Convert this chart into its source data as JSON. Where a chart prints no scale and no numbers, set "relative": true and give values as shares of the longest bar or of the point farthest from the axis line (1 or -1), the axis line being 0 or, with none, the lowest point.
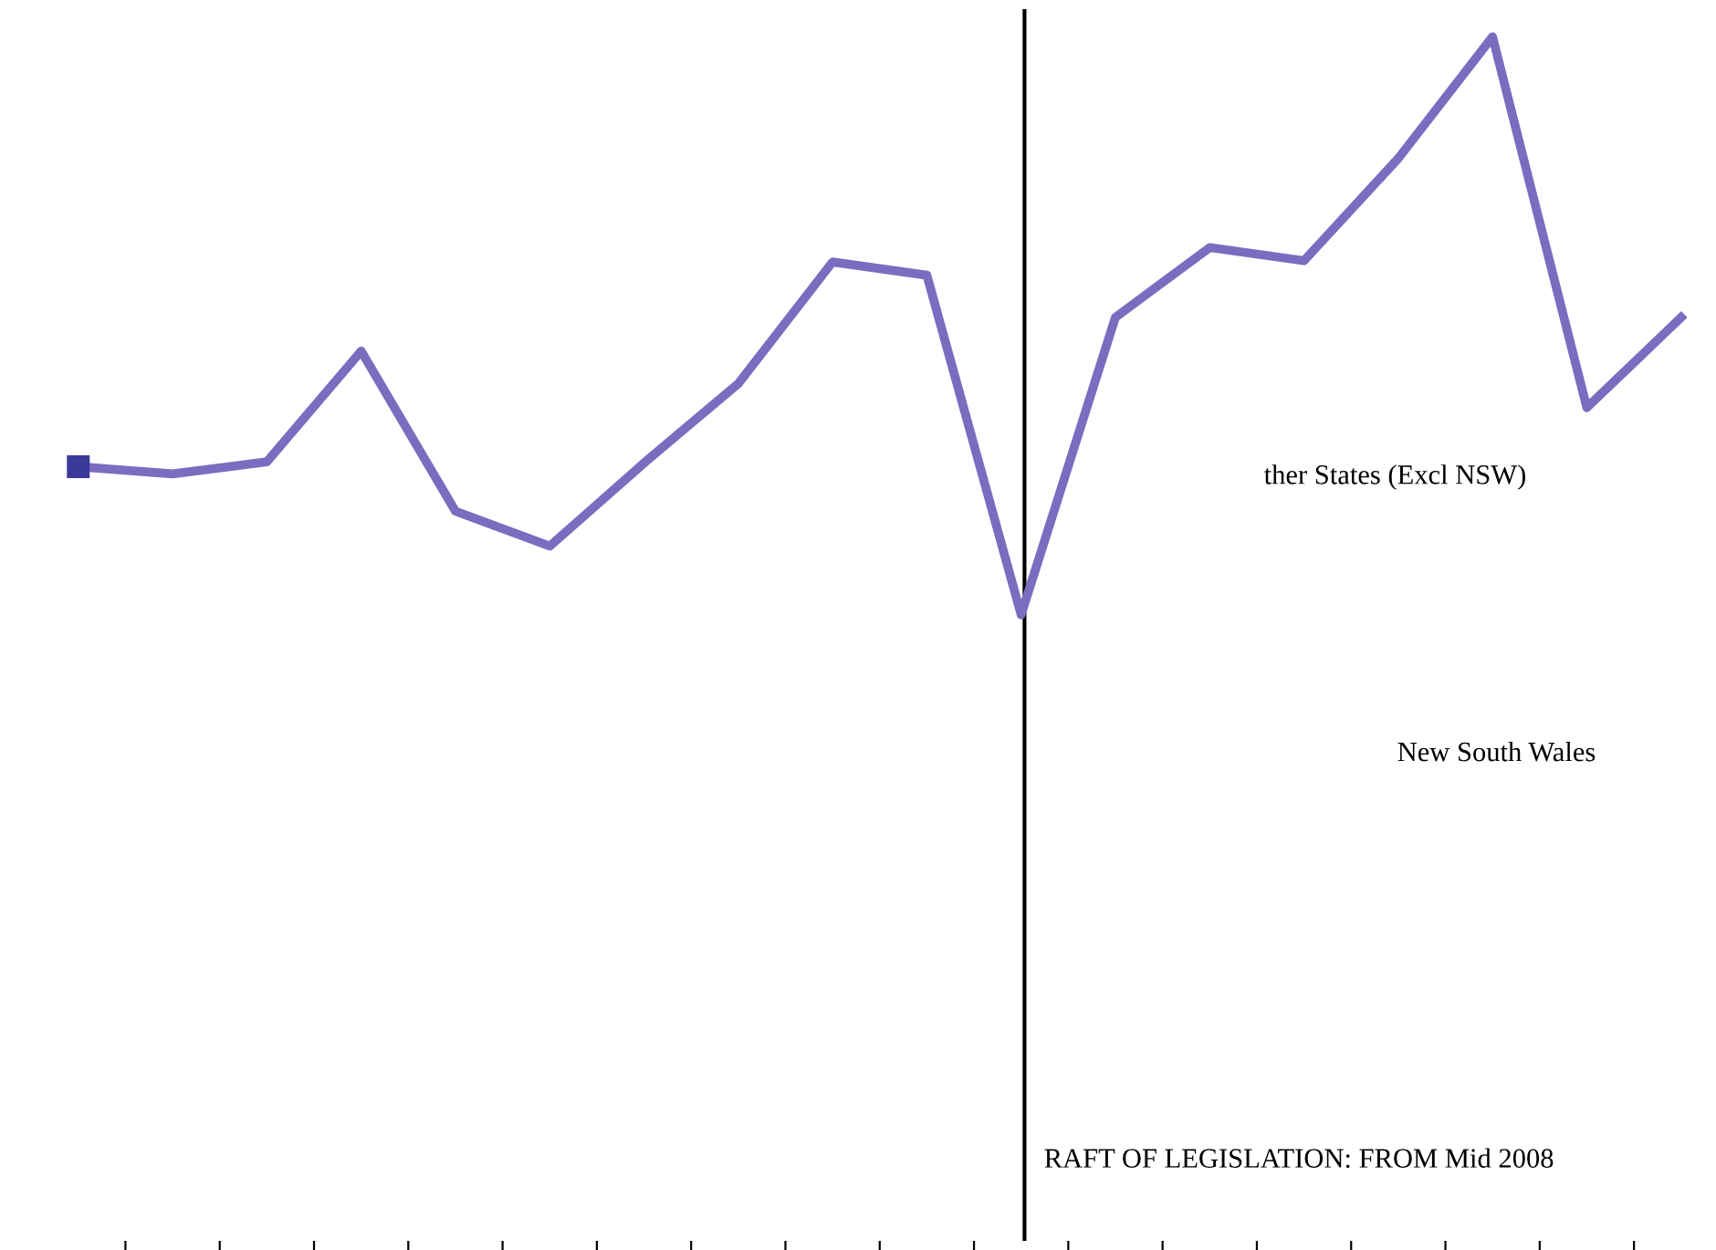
{
  "chart_data": {
    "type": "line",
    "relative": true,
    "categories": [
      null,
      null,
      null,
      null,
      null,
      null,
      null,
      null,
      null,
      null,
      null,
      null,
      null,
      null,
      null,
      null,
      null,
      null
    ],
    "series": [
      {
        "color": "#7b6cc0",
        "values": [
          0.643,
          0.637,
          0.647,
          0.739,
          0.606,
          0.577,
          0.646,
          0.712,
          0.813,
          0.802,
          0.52,
          0.767,
          0.825,
          0.814,
          0.899,
          1,
          0.692,
          0.767
        ]
      }
    ],
    "annotations": [
      "ther States (Excl NSW)",
      "New South Wales",
      "RAFT OF LEGISLATION: FROM Mid 2008"
    ],
    "grid": false,
    "legend": false
  }
}
